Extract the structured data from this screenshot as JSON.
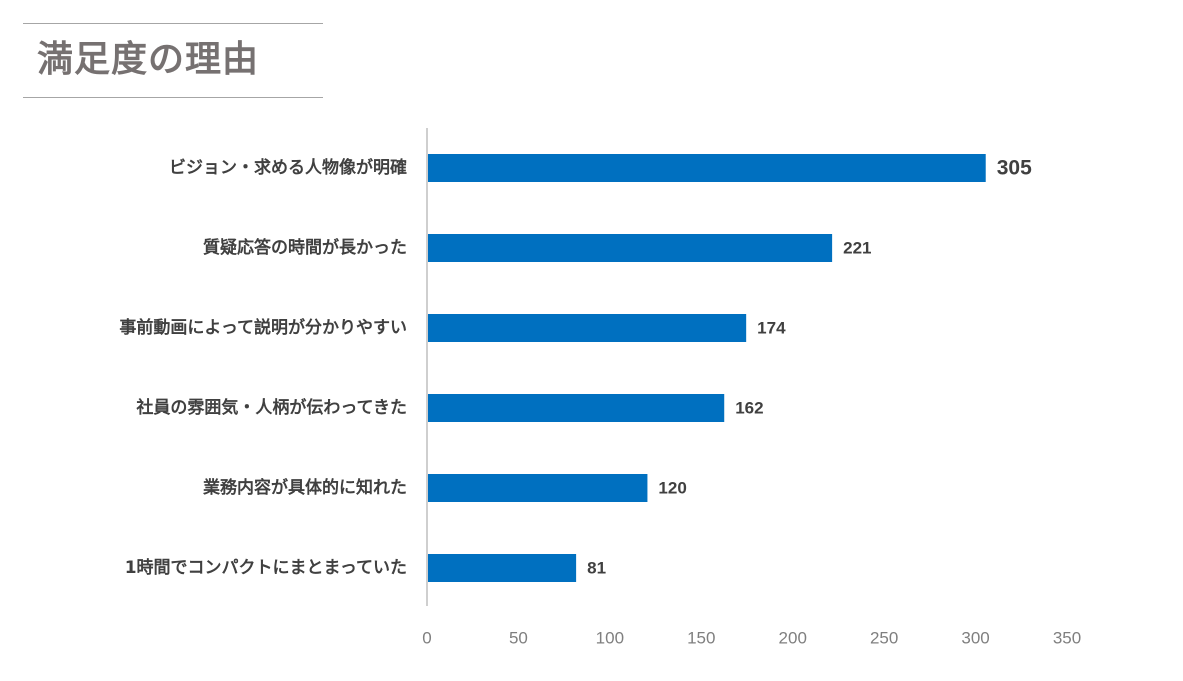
{
  "chart_data": {
    "type": "bar",
    "orientation": "horizontal",
    "title": "満足度の理由",
    "categories": [
      "ビジョン・求める人物像が明確",
      "質疑応答の時間が長かった",
      "事前動画によって説明が分かりやすい",
      "社員の雰囲気・人柄が伝わってきた",
      "業務内容が具体的に知れた",
      "1時間でコンパクトにまとまっていた"
    ],
    "values": [
      305,
      221,
      174,
      162,
      120,
      81
    ],
    "xlim": [
      0,
      350
    ],
    "xticks": [
      0,
      50,
      100,
      150,
      200,
      250,
      300,
      350
    ],
    "bar_color": "#0070C0",
    "grid": false,
    "legend": "none"
  }
}
